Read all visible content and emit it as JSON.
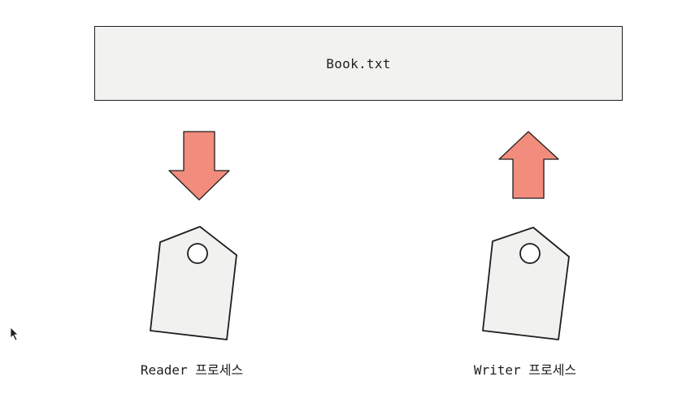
{
  "file": {
    "name": "Book.txt"
  },
  "processes": [
    {
      "label": "Reader 프로세스",
      "arrow": "down"
    },
    {
      "label": "Writer 프로세스",
      "arrow": "up"
    }
  ],
  "colors": {
    "arrow_fill": "#f28c7c",
    "stroke": "#1e1e1e",
    "box_fill": "#f2f2f1",
    "tag_fill": "#f1f1f0"
  },
  "icons": {
    "read": "arrow-down-icon",
    "write": "arrow-up-icon",
    "process": "tag-icon",
    "cursor": "mouse-pointer-icon"
  }
}
